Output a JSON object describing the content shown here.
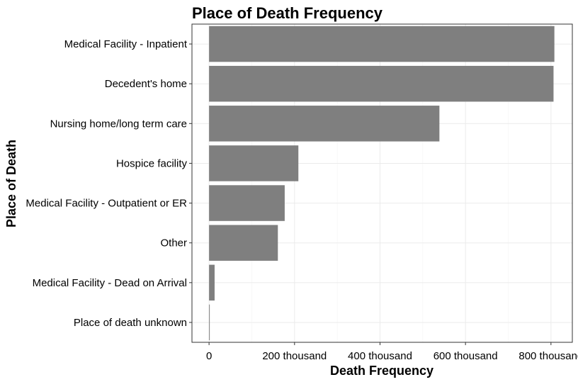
{
  "chart_data": {
    "type": "bar",
    "orientation": "horizontal",
    "title": "Place of Death Frequency",
    "xlabel": "Death Frequency",
    "ylabel": "Place of Death",
    "categories": [
      "Medical Facility - Inpatient",
      "Decedent's home",
      "Nursing home/long term care",
      "Hospice facility",
      "Medical Facility - Outpatient or ER",
      "Other",
      "Medical Facility - Dead on Arrival",
      "Place of death unknown"
    ],
    "values": [
      808000,
      806000,
      539000,
      209000,
      177000,
      161000,
      13000,
      1500
    ],
    "xlim": [
      -40000,
      850000
    ],
    "xticks": [
      0,
      200000,
      400000,
      600000,
      800000
    ],
    "xtick_labels": [
      "0",
      "200 thousand",
      "400 thousand",
      "600 thousand",
      "800 thousand"
    ],
    "grid": true,
    "legend": "none",
    "bar_color": "#7f7f7f"
  }
}
